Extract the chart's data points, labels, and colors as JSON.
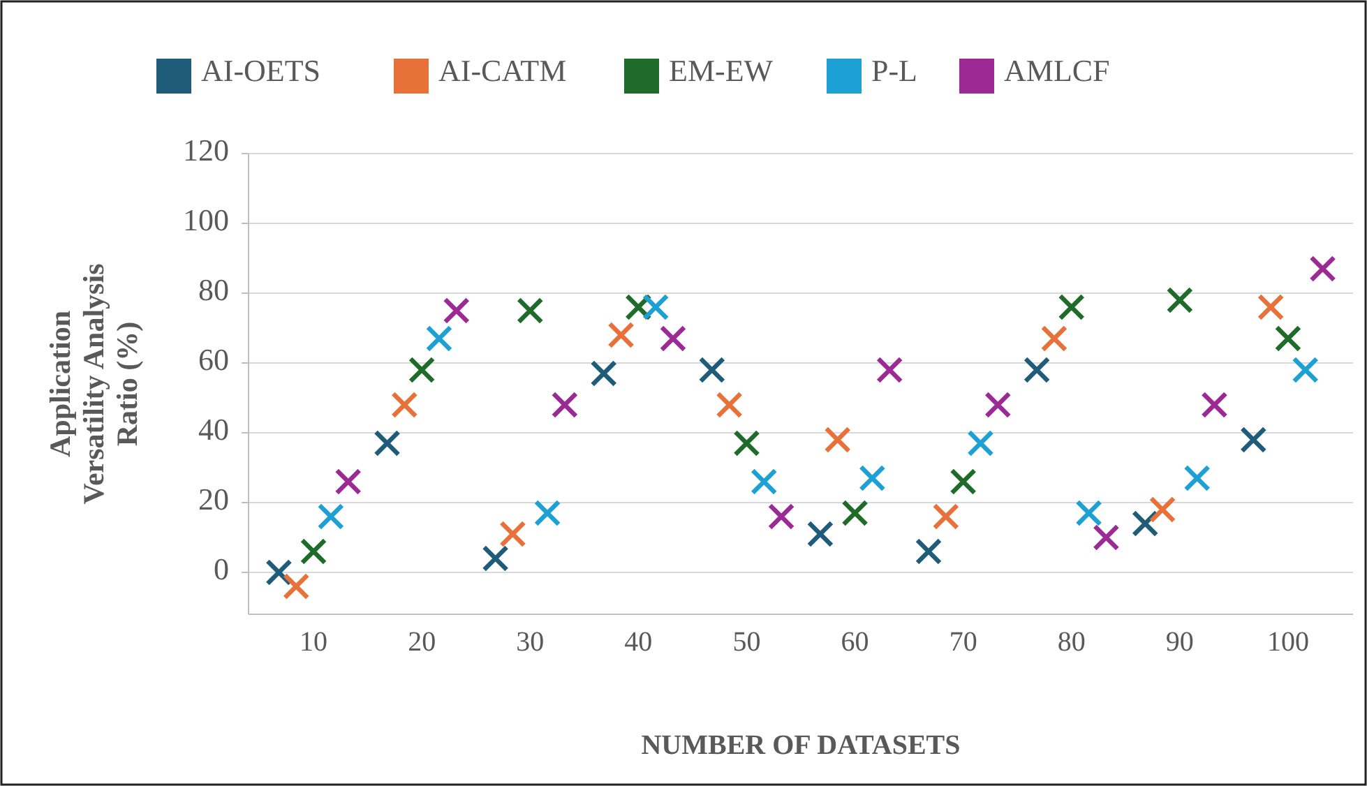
{
  "chart_data": {
    "type": "scatter",
    "xlabel": "NUMBER OF DATASETS",
    "ylabel": "Application Versatility Analysis Ratio (%)",
    "categories": [
      "10",
      "20",
      "30",
      "40",
      "50",
      "60",
      "70",
      "80",
      "90",
      "100"
    ],
    "series": [
      {
        "name": "AI-OETS",
        "color": "#1f5c7a",
        "values": [
          0,
          37,
          4,
          57,
          58,
          11,
          6,
          58,
          14,
          38
        ]
      },
      {
        "name": "AI-CATM",
        "color": "#e8713a",
        "values": [
          -4,
          48,
          11,
          68,
          48,
          38,
          16,
          67,
          18,
          76
        ]
      },
      {
        "name": "EM-EW",
        "color": "#1e6b2a",
        "values": [
          6,
          58,
          75,
          76,
          37,
          17,
          26,
          76,
          78,
          67
        ]
      },
      {
        "name": "P-L",
        "color": "#1da0d4",
        "values": [
          16,
          67,
          17,
          76,
          26,
          27,
          37,
          17,
          27,
          58
        ]
      },
      {
        "name": "AMLCF",
        "color": "#9b2a94",
        "values": [
          26,
          75,
          48,
          67,
          16,
          58,
          48,
          10,
          48,
          87
        ]
      }
    ],
    "ylim": [
      -12,
      120
    ],
    "yticks": [
      0,
      20,
      40,
      60,
      80,
      100,
      120
    ],
    "grid": "y",
    "legend": "top",
    "marker": "cross"
  }
}
